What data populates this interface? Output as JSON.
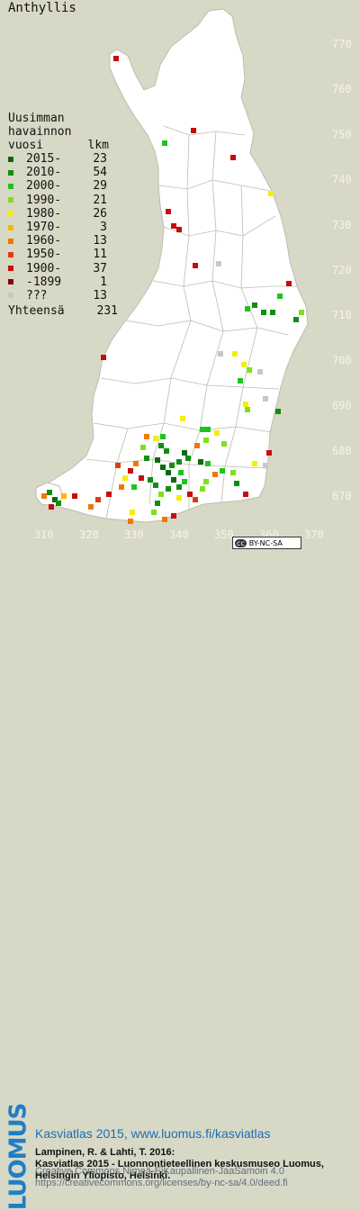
{
  "map": {
    "species": "Anthyllis",
    "background_color": "#d8d8c6",
    "land_color": "#ffffff",
    "x_ticks": [
      "310",
      "320",
      "330",
      "340",
      "350",
      "360",
      "370"
    ],
    "y_ticks": [
      "770",
      "760",
      "750",
      "740",
      "730",
      "720",
      "710",
      "700",
      "690",
      "680",
      "670"
    ]
  },
  "legend": {
    "title_line1": "Uusimman",
    "title_line2": "havainnon",
    "title_line3": "vuosi",
    "count_header": "lkm",
    "items": [
      {
        "label": "2015-",
        "count": "23",
        "color": "#0a6b0a"
      },
      {
        "label": "2010-",
        "count": "54",
        "color": "#0f8f0f"
      },
      {
        "label": "2000-",
        "count": "29",
        "color": "#1ec41e"
      },
      {
        "label": "1990-",
        "count": "21",
        "color": "#7fe01c"
      },
      {
        "label": "1980-",
        "count": "26",
        "color": "#f5ee00"
      },
      {
        "label": "1970-",
        "count": "3",
        "color": "#f7b800"
      },
      {
        "label": "1960-",
        "count": "13",
        "color": "#f07800"
      },
      {
        "label": "1950-",
        "count": "11",
        "color": "#e23a10"
      },
      {
        "label": "1900-",
        "count": "37",
        "color": "#c80c0c"
      },
      {
        "label": "-1899",
        "count": "1",
        "color": "#8a0000"
      },
      {
        "label": "???",
        "count": "13",
        "color": "#c8c8c8"
      }
    ],
    "total_label": "Yhteensä",
    "total_count": "231"
  },
  "license_badge": {
    "text": "BY-NC-SA"
  },
  "footer": {
    "logo_text": "LUOMUS",
    "title": "Kasviatlas 2015, www.luomus.fi/kasviatlas",
    "citation_line1": "Lampinen, R. & Lahti, T. 2016:",
    "citation_line2": "Kasviatlas 2015 - Luonnontieteellinen keskusmuseo Luomus,",
    "citation_line3": "Helsingin Yliopisto, Helsinki.",
    "license_line1": "Creative Commons Nimeä-EiKaupallinen-JaaSamoin 4.0",
    "license_line2": "https://creativecommons.org/licenses/by-nc-sa/4.0/deed.fi"
  }
}
